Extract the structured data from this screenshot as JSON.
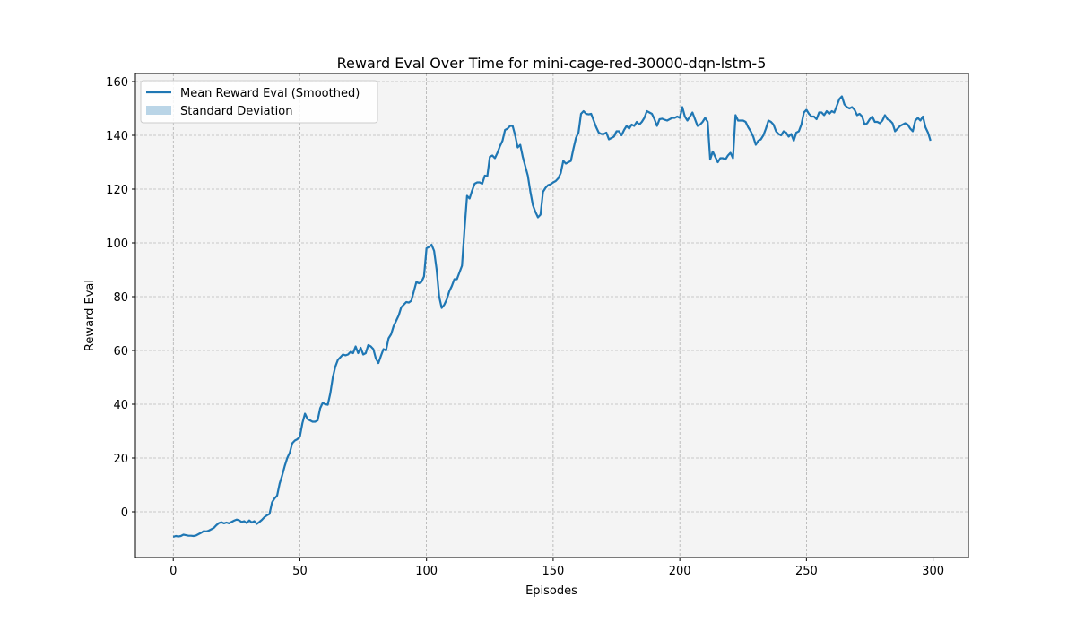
{
  "chart_data": {
    "type": "line",
    "title": "Reward Eval Over Time for mini-cage-red-30000-dqn-lstm-5",
    "xlabel": "Episodes",
    "ylabel": "Reward Eval",
    "x": [
      0,
      1,
      2,
      3,
      4,
      5,
      6,
      7,
      8,
      9,
      10,
      11,
      12,
      13,
      14,
      15,
      16,
      17,
      18,
      19,
      20,
      21,
      22,
      23,
      24,
      25,
      26,
      27,
      28,
      29,
      30,
      31,
      32,
      33,
      34,
      35,
      36,
      37,
      38,
      39,
      40,
      41,
      42,
      43,
      44,
      45,
      46,
      47,
      48,
      49,
      50,
      51,
      52,
      53,
      54,
      55,
      56,
      57,
      58,
      59,
      60,
      61,
      62,
      63,
      64,
      65,
      66,
      67,
      68,
      69,
      70,
      71,
      72,
      73,
      74,
      75,
      76,
      77,
      78,
      79,
      80,
      81,
      82,
      83,
      84,
      85,
      86,
      87,
      88,
      89,
      90,
      91,
      92,
      93,
      94,
      95,
      96,
      97,
      98,
      99,
      100,
      101,
      102,
      103,
      104,
      105,
      106,
      107,
      108,
      109,
      110,
      111,
      112,
      113,
      114,
      115,
      116,
      117,
      118,
      119,
      120,
      121,
      122,
      123,
      124,
      125,
      126,
      127,
      128,
      129,
      130,
      131,
      132,
      133,
      134,
      135,
      136,
      137,
      138,
      139,
      140,
      141,
      142,
      143,
      144,
      145,
      146,
      147,
      148,
      149,
      150,
      151,
      152,
      153,
      154,
      155,
      156,
      157,
      158,
      159,
      160,
      161,
      162,
      163,
      164,
      165,
      166,
      167,
      168,
      169,
      170,
      171,
      172,
      173,
      174,
      175,
      176,
      177,
      178,
      179,
      180,
      181,
      182,
      183,
      184,
      185,
      186,
      187,
      188,
      189,
      190,
      191,
      192,
      193,
      194,
      195,
      196,
      197,
      198,
      199,
      200,
      201,
      202,
      203,
      204,
      205,
      206,
      207,
      208,
      209,
      210,
      211,
      212,
      213,
      214,
      215,
      216,
      217,
      218,
      219,
      220,
      221,
      222,
      223,
      224,
      225,
      226,
      227,
      228,
      229,
      230,
      231,
      232,
      233,
      234,
      235,
      236,
      237,
      238,
      239,
      240,
      241,
      242,
      243,
      244,
      245,
      246,
      247,
      248,
      249,
      250,
      251,
      252,
      253,
      254,
      255,
      256,
      257,
      258,
      259,
      260,
      261,
      262,
      263,
      264,
      265,
      266,
      267,
      268,
      269,
      270,
      271,
      272,
      273,
      274,
      275,
      276,
      277,
      278,
      279,
      280,
      281,
      282,
      283,
      284,
      285,
      286,
      287,
      288,
      289,
      290,
      291,
      292,
      293,
      294,
      295,
      296,
      297,
      298,
      299
    ],
    "series": [
      {
        "name": "Mean Reward Eval (Smoothed)",
        "color": "#1f77b4",
        "values": [
          -9.3,
          -9,
          -9.2,
          -9,
          -8.5,
          -8.7,
          -8.9,
          -8.9,
          -9,
          -8.8,
          -8.3,
          -7.8,
          -7.2,
          -7.3,
          -7,
          -6.5,
          -6,
          -5,
          -4.2,
          -3.9,
          -4.3,
          -4,
          -4.3,
          -3.8,
          -3.3,
          -2.9,
          -3.2,
          -3.8,
          -3.5,
          -4.2,
          -3.2,
          -4,
          -3.5,
          -4.5,
          -3.8,
          -3,
          -2,
          -1.3,
          -0.8,
          3.5,
          5,
          6,
          10.5,
          13.5,
          17,
          20,
          22,
          25.5,
          26.5,
          27,
          28,
          33,
          36.5,
          34.5,
          34,
          33.5,
          33.5,
          34,
          38.5,
          40.5,
          40,
          39.8,
          44,
          50,
          54,
          56.5,
          57.5,
          58.5,
          58.2,
          58.5,
          59.5,
          59,
          61.5,
          59,
          61,
          58.5,
          59,
          62,
          61.5,
          60.5,
          57,
          55.3,
          58,
          60.5,
          60,
          64.5,
          66,
          69,
          71,
          73,
          76,
          77,
          78,
          77.8,
          78.5,
          82,
          85.5,
          85,
          85.5,
          87.5,
          98,
          98.5,
          99.3,
          97,
          90,
          80,
          75.8,
          77,
          79,
          82,
          84,
          86.5,
          86.5,
          89,
          91.5,
          105,
          117.5,
          116.5,
          119.5,
          122,
          122.5,
          122.5,
          122,
          125,
          124.8,
          132,
          132.5,
          131.5,
          133.5,
          136,
          138,
          142,
          142.5,
          143.5,
          143.5,
          140,
          135.5,
          136.5,
          132,
          128.5,
          125,
          119,
          114,
          111.5,
          109.5,
          110.5,
          119,
          120.5,
          121.5,
          121.8,
          122.5,
          123,
          124,
          126,
          130.5,
          129.5,
          130,
          130.5,
          135,
          139,
          141,
          148,
          149,
          148,
          147.8,
          148,
          145.5,
          143,
          141,
          140.5,
          140.5,
          141,
          138.5,
          139,
          139.5,
          141.5,
          141.5,
          140,
          142,
          143.5,
          142.5,
          144,
          143.5,
          145,
          144,
          145,
          146.5,
          149,
          148.5,
          148,
          146,
          143.5,
          146,
          146.2,
          145.8,
          145.5,
          146,
          146.5,
          146.5,
          147,
          146.5,
          150.5,
          147,
          145.5,
          147,
          148.5,
          146,
          143.5,
          144,
          145,
          146.5,
          145,
          131,
          134,
          132,
          130,
          131.5,
          131.5,
          131,
          132.5,
          133.5,
          131.5,
          147.5,
          145.5,
          145.5,
          145.5,
          145,
          143,
          141.5,
          139.5,
          136.5,
          138,
          138.5,
          140,
          142.5,
          145.5,
          145,
          144,
          141.5,
          140.5,
          140,
          141.5,
          141,
          139.5,
          140.5,
          138,
          141,
          141.5,
          144,
          148.5,
          149.5,
          148,
          147,
          147,
          146,
          148.5,
          148.5,
          147.5,
          149,
          148,
          149,
          148.5,
          151,
          153.5,
          154.5,
          151.5,
          150.5,
          150,
          150.5,
          149.5,
          147.5,
          148,
          147,
          144,
          144.5,
          146,
          147,
          145,
          145,
          144.5,
          145.5,
          147.5,
          146,
          145.5,
          144.5,
          141.5,
          142.5,
          143.5,
          144,
          144.5,
          144,
          142.5,
          141.5,
          145.5,
          146.5,
          145.5,
          147,
          143,
          141,
          138
        ]
      }
    ],
    "band": {
      "name": "Standard Deviation",
      "color": "#1f77b4",
      "opacity": 0.3
    },
    "xlim": [
      -14.95,
      313.95
    ],
    "xticks": [
      0,
      50,
      100,
      150,
      200,
      250,
      300
    ],
    "ylim": [
      -17,
      163
    ],
    "yticks": [
      0,
      20,
      40,
      60,
      80,
      100,
      120,
      140,
      160
    ],
    "grid": true,
    "legend": "upper left"
  }
}
